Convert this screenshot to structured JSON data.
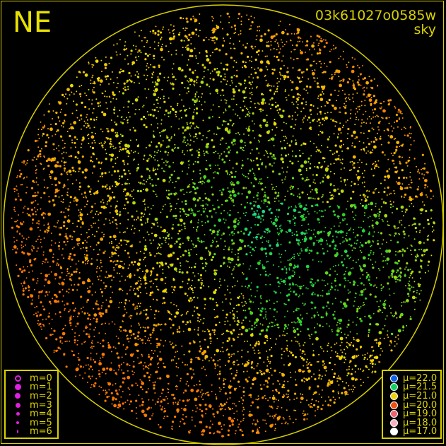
{
  "header": {
    "direction": "NE",
    "title": "03k61027o0585w",
    "subtitle": "sky"
  },
  "chart_data": {
    "type": "scatter",
    "title": "03k61027o0585w",
    "subtitle": "sky",
    "legend_magnitude": {
      "placement": "bottom-left",
      "entries": [
        {
          "label": "m=0",
          "color": "#e020e0",
          "style": "ring"
        },
        {
          "label": "m=1",
          "color": "#e020e0"
        },
        {
          "label": "m=2",
          "color": "#e020e0"
        },
        {
          "label": "m=3",
          "color": "#e020e0"
        },
        {
          "label": "m=4",
          "color": "#e020e0"
        },
        {
          "label": "m=5",
          "color": "#e020e0"
        },
        {
          "label": "m=6",
          "color": "#e020e0"
        }
      ]
    },
    "legend_sky_brightness": {
      "placement": "bottom-right",
      "entries": [
        {
          "label": "μ=22.0",
          "value": 22.0,
          "color": "#1060f0"
        },
        {
          "label": "μ=21.5",
          "value": 21.5,
          "color": "#10d060"
        },
        {
          "label": "μ=21.0",
          "value": 21.0,
          "color": "#f0d000"
        },
        {
          "label": "μ=20.0",
          "value": 20.0,
          "color": "#f05010"
        },
        {
          "label": "μ=19.0",
          "value": 19.0,
          "color": "#f06070"
        },
        {
          "label": "μ=18.0",
          "value": 18.0,
          "color": "#f8b0c0"
        },
        {
          "label": "μ=17.0",
          "value": 17.0,
          "color": "#ffffff"
        }
      ]
    },
    "horizon_color": "#d8d000"
  }
}
